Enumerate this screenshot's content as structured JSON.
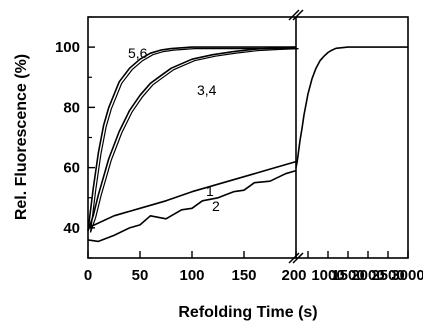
{
  "chart_data": {
    "type": "line",
    "xlabel": "Refolding Time (s)",
    "ylabel": "Rel. Fluorescence (%)",
    "ylim": [
      30,
      110
    ],
    "y_ticks": [
      40,
      60,
      80,
      100
    ],
    "broken_x_axis": true,
    "panels": [
      {
        "xlim": [
          0,
          200
        ],
        "x_ticks": [
          0,
          50,
          100,
          150,
          200
        ]
      },
      {
        "xlim": [
          200,
          3000
        ],
        "x_ticks": [
          500,
          1000,
          1500,
          2000,
          2500,
          3000
        ],
        "x_tick_labels_shown": [
          1000,
          1500,
          2000,
          2500,
          3000
        ]
      }
    ],
    "series": [
      {
        "name": "1",
        "panel": 0,
        "x": [
          0,
          25,
          50,
          75,
          100,
          125,
          150,
          175,
          200
        ],
        "y": [
          40,
          44,
          46.5,
          49,
          52,
          54.5,
          57,
          59.5,
          62
        ]
      },
      {
        "name": "2",
        "panel": 0,
        "x": [
          0,
          10,
          25,
          40,
          50,
          60,
          75,
          90,
          100,
          110,
          125,
          140,
          150,
          160,
          175,
          190,
          200
        ],
        "y": [
          36,
          35.5,
          37.5,
          40,
          41,
          44,
          43,
          46,
          46.5,
          49,
          50,
          52,
          52.5,
          55,
          55.5,
          58,
          59
        ]
      },
      {
        "name": "3,4",
        "panel": 0,
        "x": [
          0,
          5,
          10,
          20,
          30,
          40,
          50,
          60,
          70,
          80,
          100,
          120,
          140,
          160,
          180,
          200
        ],
        "y": [
          39,
          44,
          51,
          63,
          72,
          79,
          84,
          88,
          90.5,
          93,
          96,
          97.5,
          98.5,
          99.3,
          99.7,
          100
        ]
      },
      {
        "name": "5,6",
        "panel": 0,
        "x": [
          0,
          5,
          10,
          15,
          20,
          30,
          40,
          50,
          60,
          70,
          80,
          100,
          120,
          150,
          200
        ],
        "y": [
          39,
          53,
          65,
          74,
          80,
          88.5,
          93,
          96,
          98,
          99,
          99.5,
          100,
          100,
          100,
          100
        ]
      },
      {
        "name": "",
        "panel": 1,
        "x": [
          200,
          230,
          260,
          300,
          350,
          400,
          450,
          500,
          550,
          600,
          700,
          800,
          900,
          1000,
          1100,
          1200,
          1500,
          2000,
          2500,
          3000
        ],
        "y": [
          60,
          62,
          65,
          69,
          73,
          77.5,
          81,
          84.5,
          87,
          89.5,
          93,
          95.5,
          97,
          98.2,
          99,
          99.6,
          100,
          100,
          100,
          100
        ]
      }
    ],
    "curve_labels": [
      "1",
      "2",
      "3,4",
      "5,6"
    ]
  }
}
